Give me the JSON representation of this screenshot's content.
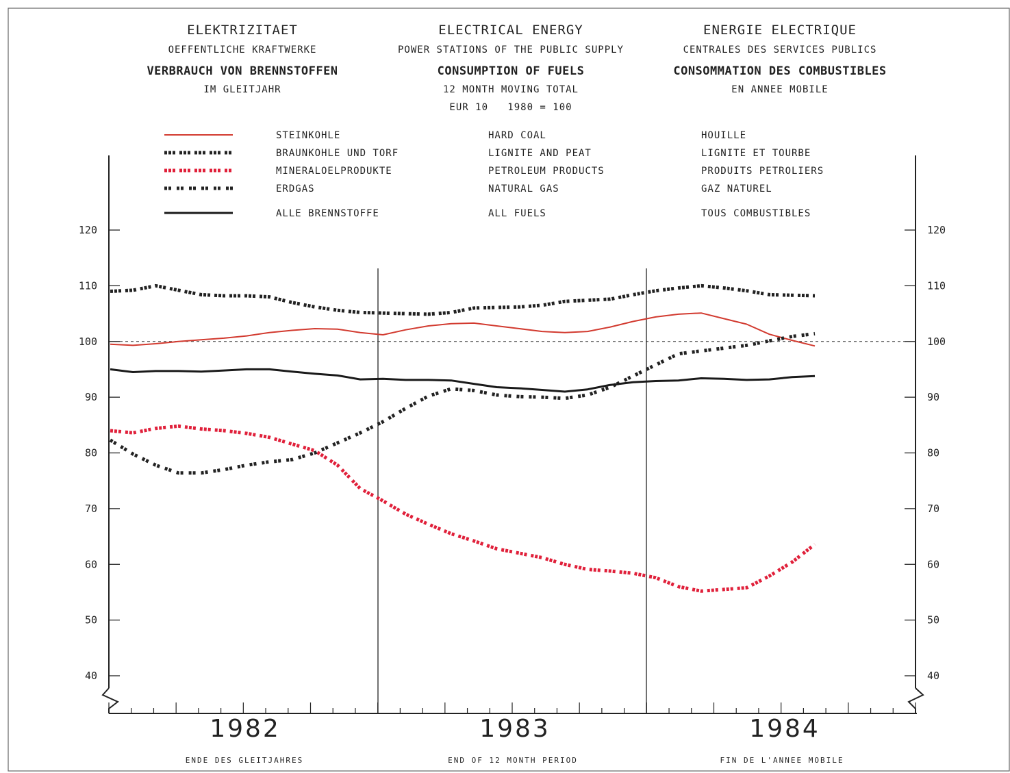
{
  "titles": [
    {
      "title": "ELEKTRIZITAET",
      "subtitle": "OEFFENTLICHE KRAFTWERKE",
      "heading": "VERBRAUCH VON BRENNSTOFFEN",
      "note": "IM GLEITJAHR"
    },
    {
      "title": "ELECTRICAL ENERGY",
      "subtitle": "POWER STATIONS OF THE PUBLIC SUPPLY",
      "heading": "CONSUMPTION OF FUELS",
      "note": "12 MONTH MOVING TOTAL",
      "note2": "EUR 10   1980 = 100"
    },
    {
      "title": "ENERGIE ELECTRIQUE",
      "subtitle": "CENTRALES DES SERVICES PUBLICS",
      "heading": "CONSOMMATION DES COMBUSTIBLES",
      "note": "EN ANNEE MOBILE"
    }
  ],
  "footer": [
    "ENDE DES GLEITJAHRES",
    "END OF 12 MONTH PERIOD",
    "FIN DE L'ANNEE MOBILE"
  ],
  "chart_data": {
    "type": "line",
    "ylim": [
      40,
      120
    ],
    "yticks": [
      "40",
      "50",
      "60",
      "70",
      "80",
      "90",
      "100",
      "110",
      "120"
    ],
    "reference_line": 100,
    "years": [
      "1982",
      "1983",
      "1984"
    ],
    "x": [
      0,
      1,
      2,
      3,
      4,
      5,
      6,
      7,
      8,
      9,
      10,
      11,
      12,
      13,
      14,
      15,
      16,
      17,
      18,
      19,
      20,
      21,
      22,
      23,
      24,
      25,
      26,
      27,
      28,
      29,
      30,
      31
    ],
    "series": [
      {
        "name_de": "STEINKOHLE",
        "name_en": "HARD COAL",
        "name_fr": "HOUILLE",
        "color": "#d23a2f",
        "style": "solid",
        "values": [
          99.5,
          99.3,
          99.6,
          100.0,
          100.3,
          100.6,
          101.0,
          101.6,
          102.0,
          102.3,
          102.2,
          101.6,
          101.2,
          102.1,
          102.8,
          103.2,
          103.3,
          102.8,
          102.3,
          101.8,
          101.6,
          101.8,
          102.6,
          103.6,
          104.4,
          104.9,
          105.1,
          104.1,
          103.1,
          101.3,
          100.2,
          99.2
        ]
      },
      {
        "name_de": "BRAUNKOHLE UND TORF",
        "name_en": "LIGNITE AND PEAT",
        "name_fr": "LIGNITE ET TOURBE",
        "color": "#222222",
        "style": "dash",
        "values": [
          109.0,
          109.2,
          110.0,
          109.2,
          108.4,
          108.2,
          108.2,
          108.0,
          107.0,
          106.2,
          105.6,
          105.2,
          105.1,
          105.0,
          104.9,
          105.2,
          106.0,
          106.1,
          106.2,
          106.5,
          107.2,
          107.4,
          107.6,
          108.4,
          109.1,
          109.6,
          110.0,
          109.6,
          109.1,
          108.4,
          108.3,
          108.2
        ]
      },
      {
        "name_de": "MINERALOELPRODUKTE",
        "name_en": "PETROLEUM PRODUCTS",
        "name_fr": "PRODUITS PETROLIERS",
        "color": "#e0203a",
        "style": "dash",
        "values": [
          84.0,
          83.6,
          84.4,
          84.8,
          84.3,
          84.0,
          83.5,
          82.8,
          81.6,
          80.4,
          77.8,
          73.6,
          71.4,
          69.0,
          67.2,
          65.5,
          64.2,
          62.8,
          62.0,
          61.2,
          60.0,
          59.1,
          58.8,
          58.4,
          57.6,
          56.0,
          55.2,
          55.5,
          55.8,
          57.9,
          60.4,
          63.6
        ]
      },
      {
        "name_de": "ERDGAS",
        "name_en": "NATURAL GAS",
        "name_fr": "GAZ NATUREL",
        "color": "#222222",
        "style": "dot",
        "values": [
          82.3,
          79.8,
          77.8,
          76.4,
          76.4,
          77.0,
          77.8,
          78.4,
          78.8,
          80.0,
          81.8,
          83.6,
          85.6,
          88.0,
          90.2,
          91.5,
          91.2,
          90.4,
          90.1,
          90.0,
          89.8,
          90.4,
          91.8,
          93.8,
          95.8,
          97.8,
          98.3,
          98.8,
          99.3,
          100.1,
          100.9,
          101.4
        ]
      },
      {
        "name_de": "ALLE BRENNSTOFFE",
        "name_en": "ALL FUELS",
        "name_fr": "TOUS COMBUSTIBLES",
        "color": "#1a1a1a",
        "style": "solid-thick",
        "values": [
          95.0,
          94.5,
          94.7,
          94.7,
          94.6,
          94.8,
          95.0,
          95.0,
          94.6,
          94.2,
          93.9,
          93.2,
          93.3,
          93.1,
          93.1,
          93.0,
          92.4,
          91.8,
          91.6,
          91.3,
          91.0,
          91.4,
          92.2,
          92.7,
          92.9,
          93.0,
          93.4,
          93.3,
          93.1,
          93.2,
          93.6,
          93.8
        ]
      }
    ]
  }
}
